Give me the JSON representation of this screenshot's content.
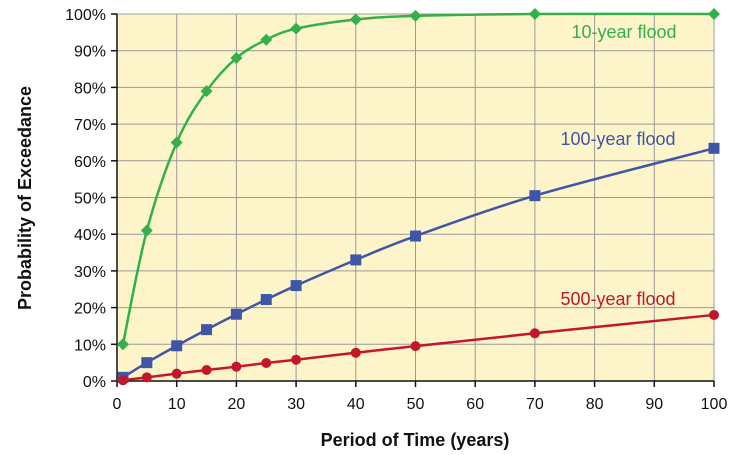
{
  "chart_data": {
    "type": "line",
    "xlabel": "Period of Time (years)",
    "ylabel": "Probability of Exceedance",
    "xlim": [
      0,
      100
    ],
    "ylim": [
      0,
      100
    ],
    "x_ticks": [
      0,
      10,
      20,
      30,
      40,
      50,
      60,
      70,
      80,
      90,
      100
    ],
    "x_tick_labels": [
      "0",
      "10",
      "20",
      "30",
      "40",
      "50",
      "60",
      "70",
      "80",
      "90",
      "100"
    ],
    "y_ticks": [
      0,
      10,
      20,
      30,
      40,
      50,
      60,
      70,
      80,
      90,
      100
    ],
    "y_tick_labels": [
      "0%",
      "10%",
      "20%",
      "30%",
      "40%",
      "50%",
      "60%",
      "70%",
      "80%",
      "90%",
      "100%"
    ],
    "grid": true,
    "background_color": "#fdf5c9",
    "grid_color": "#9a9a9a",
    "series": [
      {
        "name": "10-year flood",
        "color": "#33b04a",
        "marker": "diamond",
        "x": [
          1,
          5,
          10,
          15,
          20,
          25,
          30,
          40,
          50,
          70,
          100
        ],
        "y": [
          10,
          41,
          65,
          79,
          88,
          93,
          96,
          98.5,
          99.5,
          100,
          100
        ]
      },
      {
        "name": "100-year flood",
        "color": "#3f56a6",
        "marker": "square",
        "x": [
          1,
          5,
          10,
          15,
          20,
          25,
          30,
          40,
          50,
          70,
          100
        ],
        "y": [
          1,
          5,
          9.6,
          14,
          18.2,
          22.2,
          26,
          33,
          39.5,
          50.5,
          63.4
        ]
      },
      {
        "name": "500-year flood",
        "color": "#c4162a",
        "marker": "circle",
        "x": [
          1,
          5,
          10,
          15,
          20,
          25,
          30,
          40,
          50,
          70,
          100
        ],
        "y": [
          0.2,
          1,
          2,
          3,
          3.9,
          4.9,
          5.8,
          7.7,
          9.5,
          13,
          18
        ]
      }
    ]
  }
}
